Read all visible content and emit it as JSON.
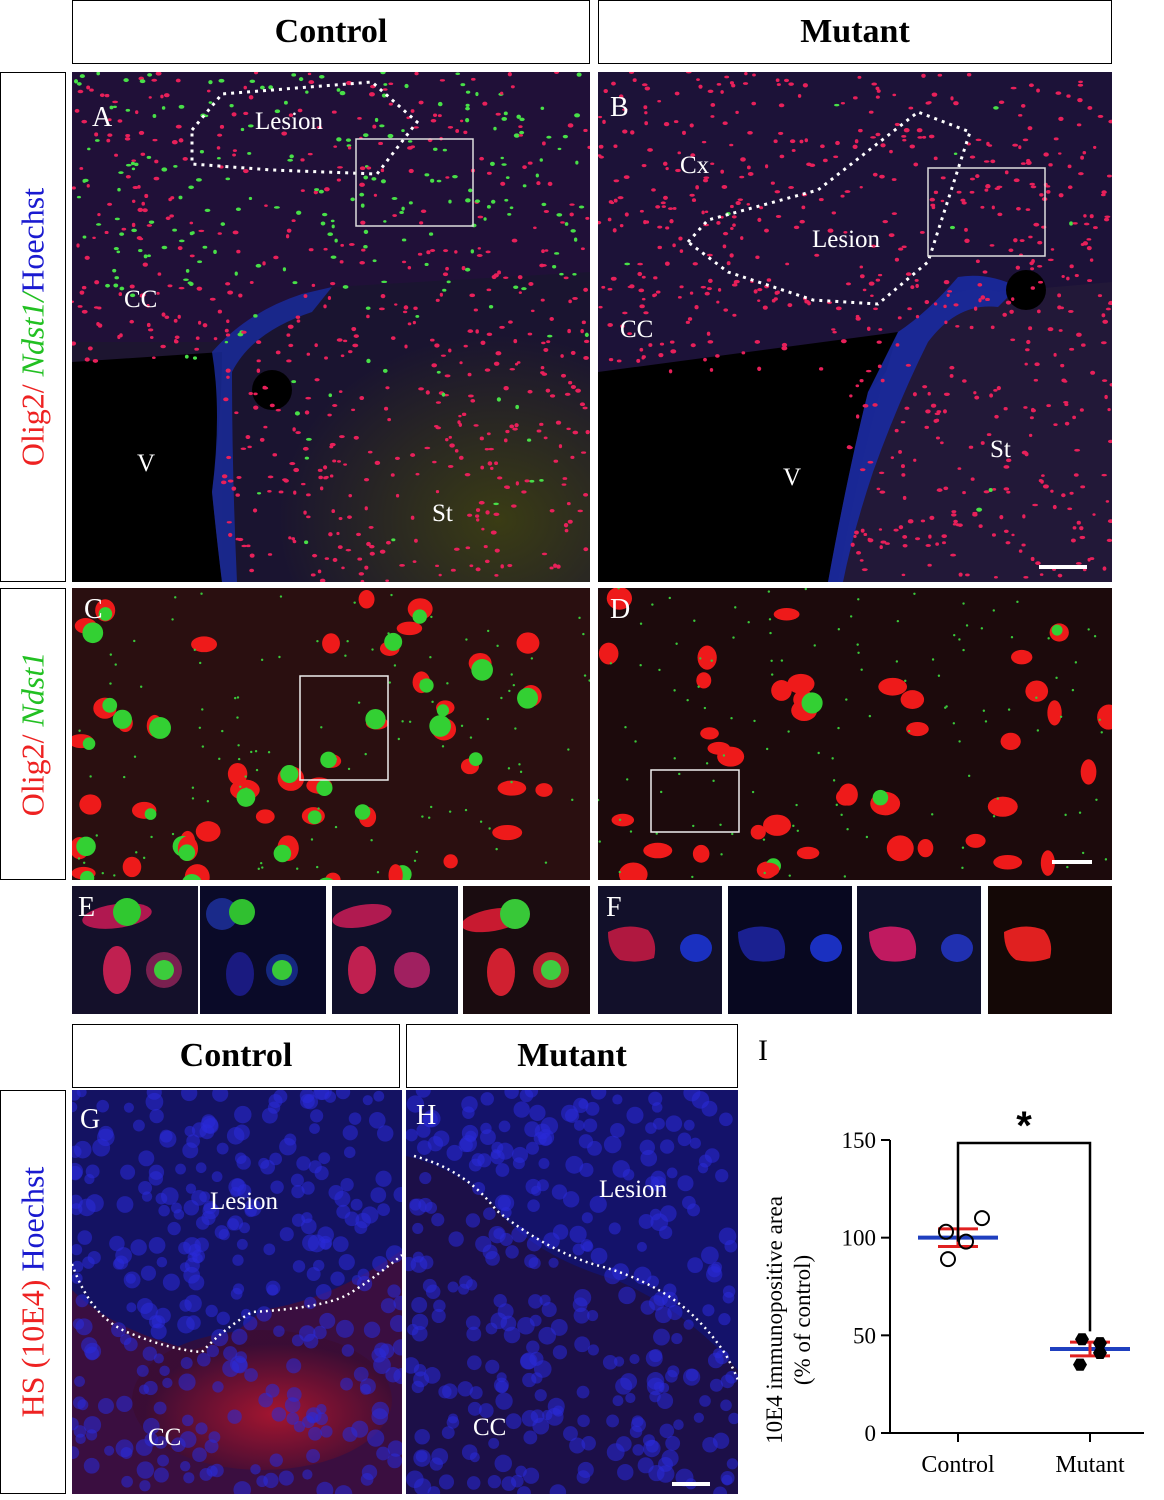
{
  "headers": {
    "top_control": "Control",
    "top_mutant": "Mutant",
    "bottom_control": "Control",
    "bottom_mutant": "Mutant"
  },
  "side_labels": {
    "row1": {
      "olig2": "Olig2/",
      "ndst1": " Ndst1/",
      "hoechst": "Hoechst"
    },
    "row2": {
      "olig2": "Olig2/",
      "ndst1": " Ndst1"
    },
    "row3": {
      "hs": "HS (10E4)",
      "hoechst": " Hoechst"
    }
  },
  "panel_letters": {
    "A": "A",
    "B": "B",
    "C": "C",
    "D": "D",
    "E": "E",
    "F": "F",
    "G": "G",
    "H": "H",
    "I": "I"
  },
  "region_labels": {
    "A": {
      "lesion": "Lesion",
      "cc": "CC",
      "v": "V",
      "st": "St"
    },
    "B": {
      "cx": "Cx",
      "lesion": "Lesion",
      "cc": "CC",
      "v": "V",
      "st": "St"
    },
    "G": {
      "lesion": "Lesion",
      "cc": "CC"
    },
    "H": {
      "lesion": "Lesion",
      "cc": "CC"
    }
  },
  "chart_data": {
    "type": "scatter",
    "ylabel": "10E4 immunopositive area (% of control)",
    "ylabel_line1": "10E4 immunopositive area",
    "ylabel_line2": "(% of control)",
    "ylim": [
      0,
      150
    ],
    "yticks": [
      0,
      50,
      100,
      150
    ],
    "categories": [
      "Control",
      "Mutant"
    ],
    "series": [
      {
        "category": "Control",
        "marker": "open-circle",
        "points": [
          110,
          103,
          98,
          89
        ],
        "mean": 100,
        "sem": 4.5
      },
      {
        "category": "Mutant",
        "marker": "filled-hexagon",
        "points": [
          48,
          46,
          41,
          35
        ],
        "mean": 43,
        "sem": 3.5
      }
    ],
    "significance": "*",
    "colors": {
      "mean": "#1f3fbf",
      "sem": "#e02020"
    }
  }
}
